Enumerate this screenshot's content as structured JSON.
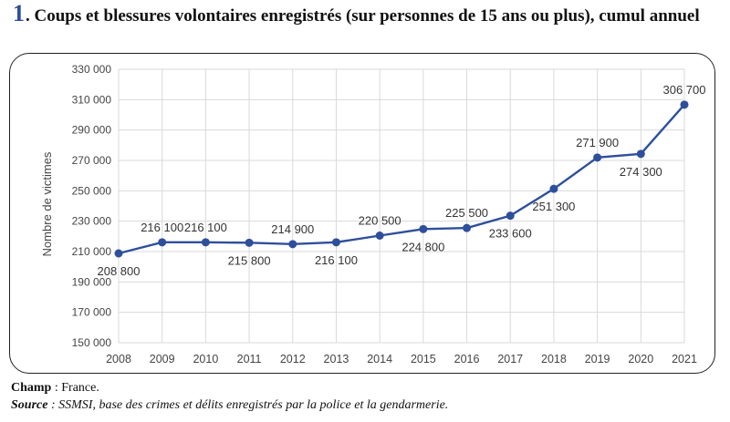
{
  "title_number": "1",
  "title_text": ". Coups et blessures volontaires enregistrés (sur personnes de 15 ans ou plus), cumul annuel",
  "footer": {
    "champ_label": "Champ",
    "champ_text": " : France.",
    "source_label": "Source",
    "source_text": " : SSMSI, base des crimes et délits enregistrés par la police et la gendarmerie."
  },
  "chart_data": {
    "type": "line",
    "title": "Coups et blessures volontaires enregistrés (sur personnes de 15 ans ou plus), cumul annuel",
    "xlabel": "",
    "ylabel": "Nombre de victimes",
    "x": [
      "2008",
      "2009",
      "2010",
      "2011",
      "2012",
      "2013",
      "2014",
      "2015",
      "2016",
      "2017",
      "2018",
      "2019",
      "2020",
      "2021"
    ],
    "values": [
      208800,
      216100,
      216100,
      215800,
      214900,
      216100,
      220500,
      224800,
      225500,
      233600,
      251300,
      271900,
      274300,
      306700
    ],
    "labels": [
      "208 800",
      "216 100",
      "216 100",
      "215 800",
      "214 900",
      "216 100",
      "220 500",
      "224 800",
      "225 500",
      "233 600",
      "251 300",
      "271 900",
      "274 300",
      "306 700"
    ],
    "label_side": [
      "below",
      "above",
      "above",
      "below",
      "above",
      "below",
      "above",
      "below",
      "above",
      "below",
      "below",
      "above",
      "below",
      "above"
    ],
    "yticks": [
      "150 000",
      "170 000",
      "190 000",
      "210 000",
      "230 000",
      "250 000",
      "270 000",
      "290 000",
      "310 000",
      "330 000"
    ],
    "ylim": [
      150000,
      330000
    ],
    "grid": true,
    "line_color": "#2e4f9b",
    "grid_color": "#d9d9d9"
  }
}
